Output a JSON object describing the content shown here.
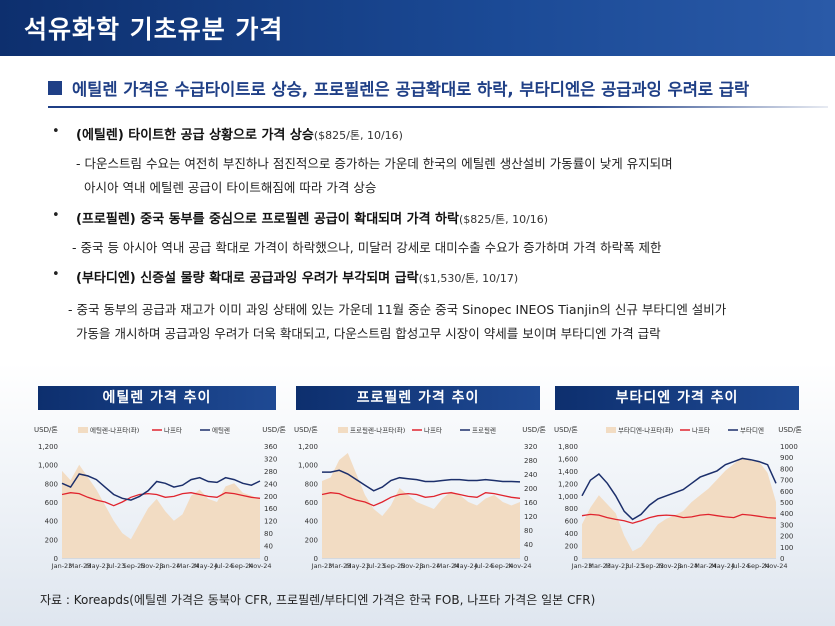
{
  "page_title": "석유화학 기초유분 가격",
  "subheading": "에틸렌 가격은 수급타이트로 상승, 프로필렌은 공급확대로 하락, 부타디엔은 공급과잉 우려로 급락",
  "bullets": [
    {
      "marker": "•",
      "title": "(에틸렌) 타이트한 공급 상황으로 가격 상승",
      "note": "($825/톤, 10/16)",
      "lines": [
        "- 다운스트림 수요는 여전히 부진하나 점진적으로 증가하는 가운데 한국의 에틸렌 생산설비 가동률이 낮게 유지되며",
        "아시아 역내 에틸렌 공급이 타이트해짐에 따라 가격 상승"
      ]
    },
    {
      "marker": "•",
      "title": "(프로필렌) 중국 동부를 중심으로 프로필렌 공급이 확대되며 가격 하락",
      "note": "($825/톤, 10/16)",
      "lines": [
        "- 중국 등 아시아 역내 공급 확대로 가격이 하락했으나, 미달러 강세로 대미수출 수요가 증가하며 가격 하락폭 제한"
      ]
    },
    {
      "marker": "•",
      "title": "(부타디엔) 신증설 물량 확대로 공급과잉 우려가 부각되며 급락",
      "note": "($1,530/톤, 10/17)",
      "lines": [
        "- 중국 동부의 공급과 재고가 이미 과잉 상태에 있는 가운데 11월 중순 중국 Sinopec INEOS Tianjin의 신규 부타디엔 설비가",
        "가동을 개시하며 공급과잉 우려가 더욱 확대되고, 다운스트림 합성고무 시장이 약세를 보이며 부타디엔 가격 급락"
      ]
    }
  ],
  "source": "자료 : Koreapds(에틸렌 가격은 동북아 CFR, 프로필렌/부타디엔 가격은 한국 FOB, 나프타 가격은 일본 CFR)",
  "colors": {
    "header": "#0d2f6e",
    "spread_area": "#f2dcc3",
    "naphtha": "#e0242e",
    "product": "#1c2f6b"
  },
  "chart_data": [
    {
      "type": "line",
      "panel_title": "에틸렌 가격 추이",
      "left_unit": "USD/톤",
      "right_unit": "USD/톤",
      "legend": [
        "에틸렌-나프타(좌)",
        "나프타",
        "에틸렌"
      ],
      "x_ticks": [
        "Jan-23",
        "Mar-23",
        "May-23",
        "Jul-23",
        "Sep-23",
        "Nov-23",
        "Jan-24",
        "Mar-24",
        "May-24",
        "Jul-24",
        "Sep-24",
        "Nov-24"
      ],
      "left_ticks": [
        "0",
        "200",
        "400",
        "600",
        "800",
        "1,000",
        "1,200"
      ],
      "right_ticks": [
        "0",
        "40",
        "80",
        "120",
        "160",
        "200",
        "240",
        "280",
        "320",
        "360"
      ],
      "ylim_left": [
        0,
        1200
      ],
      "ylim_right": [
        0,
        360
      ],
      "series": [
        {
          "name": "에틸렌-나프타(좌)",
          "axis": "right",
          "kind": "area",
          "values": [
            280,
            250,
            300,
            260,
            220,
            170,
            120,
            80,
            60,
            110,
            160,
            190,
            150,
            120,
            140,
            200,
            220,
            190,
            180,
            230,
            240,
            210,
            200,
            190
          ]
        },
        {
          "name": "나프타",
          "axis": "left",
          "kind": "line",
          "values": [
            680,
            700,
            690,
            650,
            620,
            600,
            560,
            600,
            650,
            680,
            690,
            680,
            650,
            660,
            690,
            700,
            680,
            660,
            650,
            700,
            690,
            670,
            650,
            640
          ]
        },
        {
          "name": "에틸렌",
          "axis": "left",
          "kind": "line",
          "values": [
            800,
            760,
            900,
            880,
            840,
            760,
            680,
            640,
            620,
            660,
            720,
            820,
            800,
            760,
            780,
            840,
            860,
            820,
            810,
            860,
            840,
            800,
            780,
            825
          ]
        }
      ]
    },
    {
      "type": "line",
      "panel_title": "프로필렌 가격 추이",
      "left_unit": "USD/톤",
      "right_unit": "USD/톤",
      "legend": [
        "프로필렌-나프타(좌)",
        "나프타",
        "프로필렌"
      ],
      "x_ticks": [
        "Jan-23",
        "Mar-23",
        "May-23",
        "Jul-23",
        "Sep-23",
        "Nov-23",
        "Jan-24",
        "Mar-24",
        "May-24",
        "Jul-24",
        "Sep-24",
        "Nov-24"
      ],
      "left_ticks": [
        "0",
        "200",
        "400",
        "600",
        "800",
        "1,000",
        "1,200"
      ],
      "right_ticks": [
        "0",
        "40",
        "80",
        "120",
        "160",
        "200",
        "240",
        "280",
        "320"
      ],
      "ylim_left": [
        0,
        1200
      ],
      "ylim_right": [
        0,
        320
      ],
      "series": [
        {
          "name": "프로필렌-나프타(좌)",
          "axis": "right",
          "kind": "area",
          "values": [
            220,
            230,
            280,
            300,
            240,
            180,
            140,
            120,
            150,
            200,
            180,
            160,
            150,
            140,
            170,
            190,
            180,
            160,
            150,
            170,
            180,
            160,
            150,
            160
          ]
        },
        {
          "name": "나프타",
          "axis": "left",
          "kind": "line",
          "values": [
            680,
            700,
            690,
            650,
            620,
            600,
            560,
            600,
            650,
            680,
            690,
            680,
            650,
            660,
            690,
            700,
            680,
            660,
            650,
            700,
            690,
            670,
            650,
            640
          ]
        },
        {
          "name": "프로필렌",
          "axis": "left",
          "kind": "line",
          "values": [
            920,
            920,
            940,
            900,
            840,
            780,
            720,
            760,
            830,
            860,
            850,
            840,
            820,
            820,
            830,
            840,
            840,
            830,
            830,
            840,
            830,
            820,
            820,
            815
          ]
        }
      ]
    },
    {
      "type": "line",
      "panel_title": "부타디엔 가격 추이",
      "left_unit": "USD/톤",
      "right_unit": "USD/톤",
      "legend": [
        "부타디엔-나프타(좌)",
        "나프타",
        "부타디엔"
      ],
      "x_ticks": [
        "Jan-23",
        "Mar-23",
        "May-23",
        "Jul-23",
        "Sep-23",
        "Nov-23",
        "Jan-24",
        "Mar-24",
        "May-24",
        "Jul-24",
        "Sep-24",
        "Nov-24"
      ],
      "left_ticks": [
        "0",
        "200",
        "400",
        "600",
        "800",
        "1,000",
        "1,200",
        "1,400",
        "1,600",
        "1,800"
      ],
      "right_ticks": [
        "0",
        "100",
        "200",
        "300",
        "400",
        "500",
        "600",
        "700",
        "800",
        "900",
        "1000"
      ],
      "ylim_left": [
        0,
        1800
      ],
      "ylim_right": [
        0,
        1000
      ],
      "series": [
        {
          "name": "부타디엔-나프타(좌)",
          "axis": "right",
          "kind": "area",
          "values": [
            300,
            450,
            560,
            480,
            400,
            200,
            60,
            100,
            200,
            300,
            350,
            380,
            420,
            500,
            560,
            620,
            700,
            780,
            840,
            900,
            880,
            860,
            760,
            500
          ]
        },
        {
          "name": "나프타",
          "axis": "left",
          "kind": "line",
          "values": [
            680,
            700,
            690,
            650,
            620,
            600,
            560,
            600,
            650,
            680,
            690,
            680,
            650,
            660,
            690,
            700,
            680,
            660,
            650,
            700,
            690,
            670,
            650,
            640
          ]
        },
        {
          "name": "부타디엔",
          "axis": "left",
          "kind": "line",
          "values": [
            1000,
            1250,
            1350,
            1200,
            1000,
            750,
            620,
            700,
            850,
            950,
            1000,
            1050,
            1100,
            1200,
            1300,
            1350,
            1400,
            1500,
            1550,
            1600,
            1580,
            1550,
            1500,
            1200
          ]
        }
      ]
    }
  ]
}
